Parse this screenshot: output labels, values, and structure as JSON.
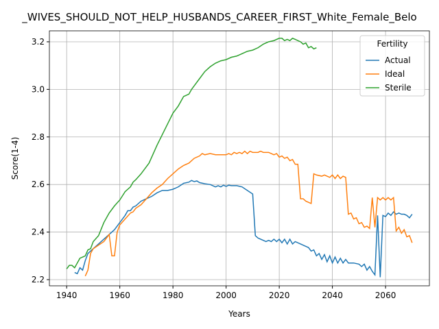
{
  "chart_data": {
    "type": "line",
    "title": "_WIVES_SHOULD_NOT_HELP_HUSBANDS_CAREER_FIRST_White_Female_Belo",
    "xlabel": "Years",
    "ylabel": "Score(1-4)",
    "legend_title": "Fertility",
    "legend": "upper right",
    "grid": true,
    "xlim": [
      1933.5,
      2076.5
    ],
    "xticks": [
      1940,
      1960,
      1980,
      2000,
      2020,
      2040,
      2060
    ],
    "ylim": [
      2.174,
      3.246
    ],
    "yticks": [
      {
        "value": 2.2,
        "label": "2.2"
      },
      {
        "value": 2.4,
        "label": "2.4"
      },
      {
        "value": 2.6,
        "label": "2.6"
      },
      {
        "value": 2.8,
        "label": "2.8"
      },
      {
        "value": 3.0,
        "label": "3.0"
      },
      {
        "value": 3.2,
        "label": "3.2"
      }
    ],
    "series": [
      {
        "name": "Actual",
        "color": "#1f77b4",
        "x": [
          1943,
          1944,
          1945,
          1946,
          1947,
          1948,
          1950,
          1952,
          1954,
          1956,
          1958,
          1960,
          1962,
          1963,
          1964,
          1965,
          1966,
          1968,
          1970,
          1972,
          1974,
          1976,
          1978,
          1980,
          1982,
          1984,
          1986,
          1987,
          1988,
          1989,
          1990,
          1992,
          1994,
          1996,
          1997,
          1998,
          1999,
          2000,
          2001,
          2002,
          2004,
          2006,
          2008,
          2010,
          2011,
          2012,
          2014,
          2015,
          2016,
          2017,
          2018,
          2019,
          2020,
          2021,
          2022,
          2023,
          2024,
          2025,
          2026,
          2028,
          2030,
          2031,
          2032,
          2033,
          2034,
          2035,
          2036,
          2037,
          2038,
          2039,
          2040,
          2041,
          2042,
          2043,
          2044,
          2045,
          2046,
          2048,
          2050,
          2051,
          2052,
          2053,
          2054,
          2055,
          2056,
          2057,
          2058,
          2059,
          2060,
          2061,
          2062,
          2063,
          2064,
          2065,
          2066,
          2067,
          2068,
          2069,
          2070
        ],
        "values": [
          2.23,
          2.225,
          2.25,
          2.24,
          2.28,
          2.31,
          2.33,
          2.35,
          2.37,
          2.39,
          2.41,
          2.44,
          2.47,
          2.49,
          2.49,
          2.505,
          2.51,
          2.53,
          2.54,
          2.55,
          2.565,
          2.575,
          2.575,
          2.58,
          2.59,
          2.605,
          2.61,
          2.617,
          2.612,
          2.615,
          2.608,
          2.603,
          2.6,
          2.59,
          2.595,
          2.59,
          2.597,
          2.592,
          2.597,
          2.595,
          2.595,
          2.59,
          2.575,
          2.56,
          2.385,
          2.375,
          2.365,
          2.36,
          2.365,
          2.36,
          2.37,
          2.36,
          2.37,
          2.355,
          2.37,
          2.35,
          2.37,
          2.35,
          2.36,
          2.35,
          2.34,
          2.335,
          2.32,
          2.325,
          2.3,
          2.31,
          2.285,
          2.305,
          2.275,
          2.3,
          2.27,
          2.295,
          2.27,
          2.29,
          2.27,
          2.285,
          2.27,
          2.27,
          2.265,
          2.255,
          2.265,
          2.24,
          2.255,
          2.235,
          2.22,
          2.47,
          2.21,
          2.47,
          2.465,
          2.48,
          2.47,
          2.485,
          2.475,
          2.48,
          2.475,
          2.475,
          2.47,
          2.46,
          2.475
        ]
      },
      {
        "name": "Ideal",
        "color": "#ff7f0e",
        "x": [
          1947,
          1948,
          1949,
          1950,
          1952,
          1954,
          1955,
          1956,
          1957,
          1958,
          1959,
          1960,
          1962,
          1964,
          1965,
          1966,
          1968,
          1970,
          1972,
          1974,
          1976,
          1978,
          1980,
          1982,
          1984,
          1986,
          1988,
          1990,
          1991,
          1992,
          1994,
          1996,
          1998,
          2000,
          2001,
          2002,
          2003,
          2004,
          2005,
          2006,
          2007,
          2008,
          2009,
          2010,
          2012,
          2013,
          2014,
          2016,
          2017,
          2018,
          2019,
          2020,
          2021,
          2022,
          2023,
          2024,
          2025,
          2026,
          2027,
          2028,
          2029,
          2030,
          2031,
          2032,
          2033,
          2034,
          2036,
          2037,
          2038,
          2039,
          2040,
          2041,
          2042,
          2043,
          2044,
          2045,
          2046,
          2047,
          2048,
          2049,
          2050,
          2051,
          2052,
          2053,
          2054,
          2055,
          2056,
          2057,
          2058,
          2059,
          2060,
          2061,
          2062,
          2063,
          2064,
          2065,
          2066,
          2067,
          2068,
          2069,
          2070
        ],
        "values": [
          2.215,
          2.24,
          2.31,
          2.33,
          2.345,
          2.36,
          2.375,
          2.39,
          2.3,
          2.3,
          2.4,
          2.43,
          2.455,
          2.48,
          2.485,
          2.5,
          2.515,
          2.54,
          2.565,
          2.585,
          2.6,
          2.625,
          2.645,
          2.665,
          2.68,
          2.69,
          2.71,
          2.72,
          2.73,
          2.725,
          2.73,
          2.725,
          2.725,
          2.725,
          2.73,
          2.725,
          2.735,
          2.73,
          2.735,
          2.73,
          2.74,
          2.73,
          2.74,
          2.735,
          2.735,
          2.74,
          2.735,
          2.735,
          2.73,
          2.725,
          2.73,
          2.715,
          2.72,
          2.71,
          2.715,
          2.7,
          2.705,
          2.685,
          2.685,
          2.54,
          2.54,
          2.53,
          2.525,
          2.52,
          2.645,
          2.64,
          2.635,
          2.64,
          2.635,
          2.63,
          2.64,
          2.625,
          2.64,
          2.625,
          2.635,
          2.63,
          2.475,
          2.48,
          2.455,
          2.46,
          2.435,
          2.44,
          2.42,
          2.425,
          2.415,
          2.545,
          2.42,
          2.545,
          2.535,
          2.545,
          2.535,
          2.545,
          2.535,
          2.545,
          2.405,
          2.42,
          2.395,
          2.41,
          2.38,
          2.385,
          2.355
        ]
      },
      {
        "name": "Sterile",
        "color": "#2ca02c",
        "x": [
          1940,
          1941,
          1942,
          1943,
          1944,
          1945,
          1946,
          1947,
          1948,
          1949,
          1950,
          1952,
          1954,
          1956,
          1958,
          1960,
          1962,
          1964,
          1965,
          1966,
          1968,
          1970,
          1971,
          1972,
          1974,
          1976,
          1978,
          1980,
          1982,
          1984,
          1986,
          1987,
          1988,
          1990,
          1992,
          1994,
          1996,
          1998,
          2000,
          2002,
          2004,
          2006,
          2008,
          2010,
          2012,
          2014,
          2016,
          2018,
          2020,
          2021,
          2022,
          2023,
          2024,
          2025,
          2026,
          2028,
          2029,
          2030,
          2031,
          2032,
          2033,
          2034
        ],
        "values": [
          2.245,
          2.26,
          2.26,
          2.25,
          2.27,
          2.29,
          2.295,
          2.3,
          2.325,
          2.33,
          2.36,
          2.385,
          2.44,
          2.48,
          2.51,
          2.535,
          2.57,
          2.59,
          2.61,
          2.62,
          2.645,
          2.675,
          2.69,
          2.715,
          2.765,
          2.81,
          2.855,
          2.9,
          2.93,
          2.97,
          2.98,
          3.0,
          3.015,
          3.045,
          3.075,
          3.095,
          3.11,
          3.12,
          3.125,
          3.135,
          3.14,
          3.15,
          3.16,
          3.165,
          3.175,
          3.19,
          3.2,
          3.205,
          3.215,
          3.215,
          3.205,
          3.21,
          3.205,
          3.215,
          3.21,
          3.2,
          3.19,
          3.195,
          3.175,
          3.18,
          3.17,
          3.175
        ]
      }
    ]
  }
}
